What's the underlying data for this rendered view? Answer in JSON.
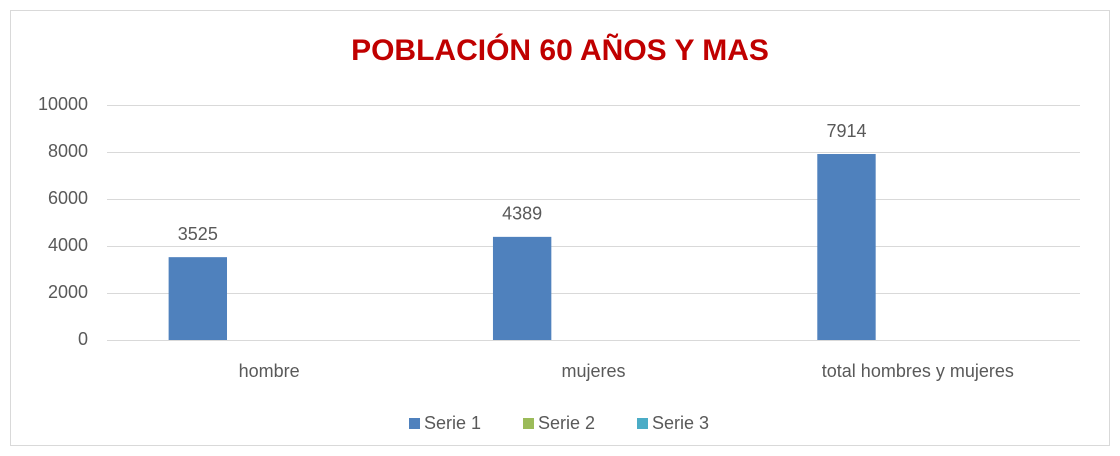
{
  "chart_data": {
    "type": "bar",
    "title": "POBLACIÓN 60 AÑOS Y MAS",
    "categories": [
      "hombre",
      "mujeres",
      "total hombres y mujeres"
    ],
    "series": [
      {
        "name": "Serie 1",
        "color": "#4f81bd",
        "values": [
          3525,
          4389,
          7914
        ]
      },
      {
        "name": "Serie 2",
        "color": "#9bbb59",
        "values": [
          null,
          null,
          null
        ]
      },
      {
        "name": "Serie 3",
        "color": "#4bacc6",
        "values": [
          null,
          null,
          null
        ]
      }
    ],
    "ylim": [
      0,
      10000
    ],
    "yticks": [
      0,
      2000,
      4000,
      6000,
      8000,
      10000
    ],
    "grid": true,
    "data_labels": true,
    "legend": "bottom"
  }
}
